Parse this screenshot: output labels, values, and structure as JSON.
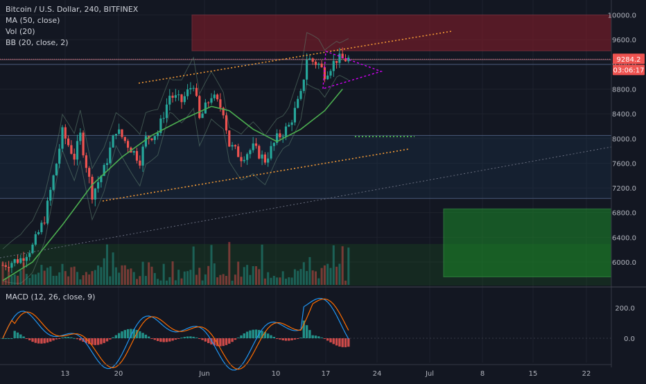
{
  "header": {
    "symbol": "Bitcoin / U.S. Dollar",
    "interval": "240",
    "exchange": "BITFINEX"
  },
  "indicators": [
    {
      "label": "MA (50, close)"
    },
    {
      "label": "Vol (20)"
    },
    {
      "label": "BB (20, close, 2)"
    },
    {
      "label": "MACD (12, 26, close, 9)"
    }
  ],
  "badges": {
    "last_price": "9284.2",
    "countdown": "03:06:17"
  },
  "colors": {
    "background": "#131722",
    "up": "#26a69a",
    "down": "#ef5350",
    "ma": "#4caf50",
    "trend_line": "#f59b36",
    "triangle": "#d500f9",
    "resistance_zone": "#8b1e2a",
    "support_zone": "#1b8a2a",
    "macd_line": "#2196f3",
    "signal_line": "#ff6d00"
  },
  "chart_data": [
    {
      "type": "candlestick",
      "title": "",
      "x_ticks": [
        "13",
        "20",
        "Jun",
        "10",
        "17",
        "24",
        "Jul",
        "8",
        "15",
        "22"
      ],
      "y_ticks": [
        "6000.0",
        "6400.0",
        "6800.0",
        "7200.0",
        "7600.0",
        "8000.0",
        "8400.0",
        "8800.0",
        "9200.0",
        "9600.0",
        "10000.0"
      ],
      "ylim": [
        5620,
        10250
      ],
      "last_price": 9284.2,
      "price_path": [
        {
          "day": 0,
          "close": 5950
        },
        {
          "day": 3,
          "close": 6050
        },
        {
          "day": 5,
          "close": 6250
        },
        {
          "day": 7,
          "close": 6700
        },
        {
          "day": 9,
          "close": 7600
        },
        {
          "day": 10,
          "close": 8100
        },
        {
          "day": 12,
          "close": 7700
        },
        {
          "day": 13,
          "close": 8050
        },
        {
          "day": 15,
          "close": 7100
        },
        {
          "day": 17,
          "close": 7500
        },
        {
          "day": 19,
          "close": 8150
        },
        {
          "day": 21,
          "close": 7900
        },
        {
          "day": 23,
          "close": 7650
        },
        {
          "day": 24,
          "close": 8000
        },
        {
          "day": 26,
          "close": 8100
        },
        {
          "day": 28,
          "close": 8700
        },
        {
          "day": 30,
          "close": 8600
        },
        {
          "day": 32,
          "close": 8900
        },
        {
          "day": 33,
          "close": 8300
        },
        {
          "day": 35,
          "close": 8700
        },
        {
          "day": 37,
          "close": 8450
        },
        {
          "day": 38,
          "close": 7900
        },
        {
          "day": 40,
          "close": 7700
        },
        {
          "day": 42,
          "close": 7850
        },
        {
          "day": 44,
          "close": 7650
        },
        {
          "day": 46,
          "close": 8000
        },
        {
          "day": 48,
          "close": 8200
        },
        {
          "day": 50,
          "close": 8700
        },
        {
          "day": 51,
          "close": 9300
        },
        {
          "day": 53,
          "close": 9200
        },
        {
          "day": 54,
          "close": 9050
        },
        {
          "day": 56,
          "close": 9284
        }
      ],
      "ma50": [
        {
          "day": 0,
          "value": 5700
        },
        {
          "day": 5,
          "value": 6000
        },
        {
          "day": 10,
          "value": 6600
        },
        {
          "day": 15,
          "value": 7250
        },
        {
          "day": 20,
          "value": 7700
        },
        {
          "day": 25,
          "value": 8050
        },
        {
          "day": 30,
          "value": 8300
        },
        {
          "day": 35,
          "value": 8520
        },
        {
          "day": 38,
          "value": 8450
        },
        {
          "day": 42,
          "value": 8150
        },
        {
          "day": 46,
          "value": 7950
        },
        {
          "day": 50,
          "value": 8150
        },
        {
          "day": 54,
          "value": 8450
        },
        {
          "day": 57,
          "value": 8800
        }
      ],
      "resistance_zone": [
        9420,
        10000
      ],
      "support_zone": [
        5760,
        6860
      ],
      "levels": [
        9284.2,
        9200,
        8050,
        7030
      ]
    },
    {
      "type": "histogram+line",
      "title": "MACD (12, 26, close, 9)",
      "y_ticks": [
        "200.0",
        "0.0"
      ],
      "ylim": [
        -350,
        330
      ]
    }
  ]
}
